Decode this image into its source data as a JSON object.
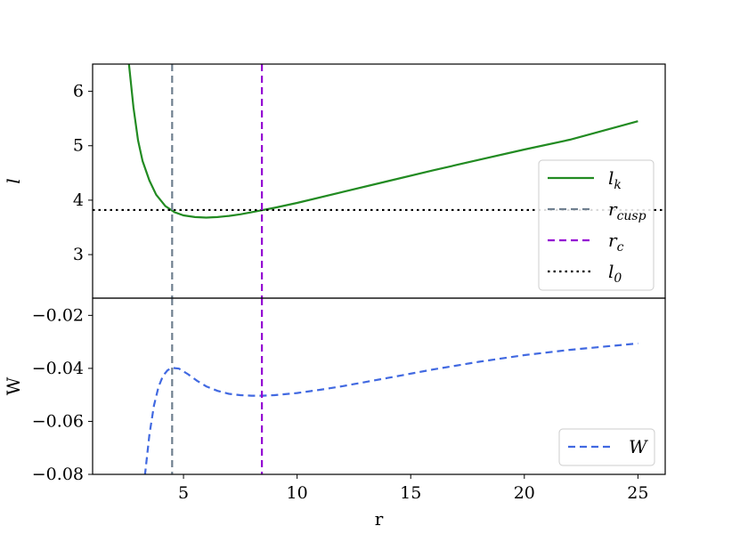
{
  "chart_data": [
    {
      "type": "line",
      "panel": "top",
      "xlabel": "",
      "ylabel": "l",
      "xlim": [
        1,
        26.2
      ],
      "ylim": [
        2.2,
        6.5
      ],
      "grid": false,
      "yticks": [
        {
          "v": 3,
          "label": "3"
        },
        {
          "v": 4,
          "label": "4"
        },
        {
          "v": 5,
          "label": "5"
        },
        {
          "v": 6,
          "label": "6"
        }
      ],
      "legend": {
        "placement": "right",
        "entries": [
          {
            "label": "l",
            "sub": "k",
            "color": "#228b22",
            "style": "solid"
          },
          {
            "label": "r",
            "sub": "cusp",
            "color": "#708090",
            "style": "dashed"
          },
          {
            "label": "r",
            "sub": "c",
            "color": "#9400d3",
            "style": "dashed"
          },
          {
            "label": "l",
            "sub": "0",
            "color": "#000000",
            "style": "dotted"
          }
        ]
      },
      "series": [
        {
          "name": "l_k",
          "color": "#228b22",
          "style": "solid",
          "x": [
            2.6,
            2.8,
            3.0,
            3.2,
            3.5,
            3.8,
            4.2,
            4.6,
            5.0,
            5.5,
            6.0,
            6.5,
            7.0,
            7.5,
            8.0,
            8.5,
            9.0,
            10.0,
            12.0,
            14.0,
            16.0,
            18.0,
            20.0,
            22.0,
            25.0
          ],
          "y": [
            6.5,
            5.7,
            5.1,
            4.72,
            4.36,
            4.1,
            3.89,
            3.78,
            3.72,
            3.69,
            3.68,
            3.69,
            3.71,
            3.74,
            3.78,
            3.82,
            3.86,
            3.95,
            4.15,
            4.35,
            4.55,
            4.74,
            4.93,
            5.11,
            5.45
          ]
        },
        {
          "name": "l_0",
          "color": "#000000",
          "style": "dotted",
          "y": 3.82
        }
      ]
    },
    {
      "type": "line",
      "panel": "bottom",
      "xlabel": "r",
      "ylabel": "W",
      "xlim": [
        1,
        26.2
      ],
      "ylim": [
        -0.08,
        -0.0135
      ],
      "grid": false,
      "xticks": [
        {
          "v": 5,
          "label": "5"
        },
        {
          "v": 10,
          "label": "10"
        },
        {
          "v": 15,
          "label": "15"
        },
        {
          "v": 20,
          "label": "20"
        },
        {
          "v": 25,
          "label": "25"
        }
      ],
      "yticks": [
        {
          "v": -0.02,
          "label": "−0.02"
        },
        {
          "v": -0.04,
          "label": "−0.04"
        },
        {
          "v": -0.06,
          "label": "−0.06"
        },
        {
          "v": -0.08,
          "label": "−0.08"
        }
      ],
      "legend": {
        "placement": "lower right",
        "entries": [
          {
            "label": "W",
            "sub": "",
            "color": "#4169e1",
            "style": "dashed"
          }
        ]
      },
      "series": [
        {
          "name": "W",
          "color": "#4169e1",
          "style": "dashed",
          "x": [
            3.3,
            3.5,
            3.7,
            3.9,
            4.1,
            4.3,
            4.5,
            4.8,
            5.2,
            5.6,
            6.0,
            6.5,
            7.0,
            7.5,
            8.0,
            8.5,
            9.0,
            10.0,
            11.0,
            12.0,
            14.0,
            16.0,
            18.0,
            20.0,
            22.0,
            25.0
          ],
          "y": [
            -0.0805,
            -0.065,
            -0.054,
            -0.047,
            -0.0428,
            -0.0407,
            -0.0398,
            -0.0401,
            -0.0422,
            -0.0447,
            -0.0468,
            -0.0485,
            -0.0496,
            -0.0501,
            -0.0503,
            -0.0503,
            -0.0501,
            -0.0493,
            -0.0481,
            -0.0467,
            -0.0436,
            -0.0404,
            -0.0375,
            -0.035,
            -0.033,
            -0.0306
          ]
        }
      ]
    }
  ],
  "markers": {
    "r_cusp": {
      "x": 4.5,
      "color": "#708090"
    },
    "r_c": {
      "x": 8.45,
      "color": "#9400d3"
    }
  }
}
